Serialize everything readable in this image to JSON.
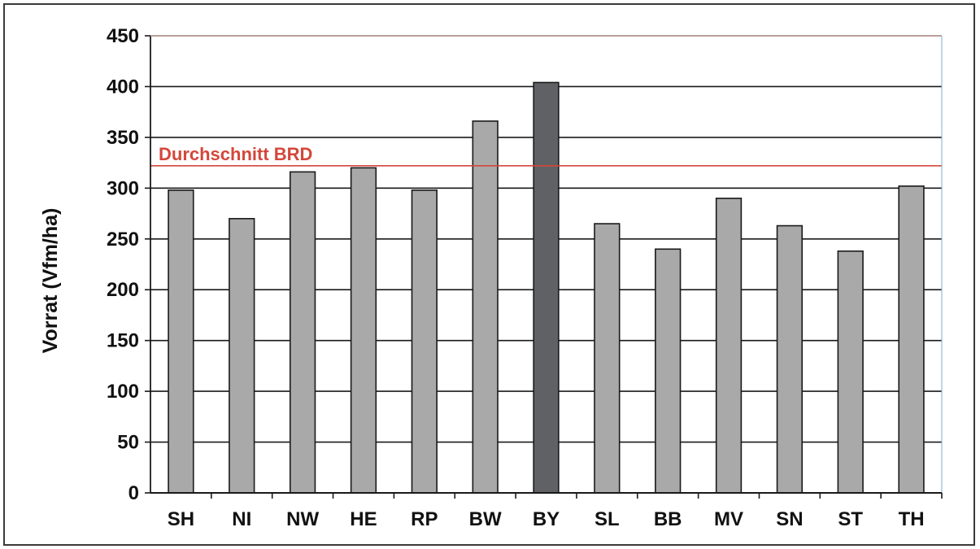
{
  "chart_data": {
    "type": "bar",
    "title": "",
    "xlabel": "",
    "ylabel": "Vorrat (Vfm/ha)",
    "ylim": [
      0,
      450
    ],
    "ytick_step": 50,
    "categories": [
      "SH",
      "NI",
      "NW",
      "HE",
      "RP",
      "BW",
      "BY",
      "SL",
      "BB",
      "MV",
      "SN",
      "ST",
      "TH"
    ],
    "values": [
      298,
      270,
      316,
      320,
      298,
      366,
      404,
      265,
      240,
      290,
      263,
      238,
      302
    ],
    "highlight_category": "BY",
    "reference_line": {
      "label": "Durchschnitt BRD",
      "value": 322
    },
    "grid": true,
    "colors": {
      "bar": "#a9a9a9",
      "bar_highlight": "#5f6164",
      "bar_stroke": "#1a1a1a",
      "grid": "#1a1a1a",
      "reference": "#d4473a",
      "text": "#111111"
    }
  }
}
